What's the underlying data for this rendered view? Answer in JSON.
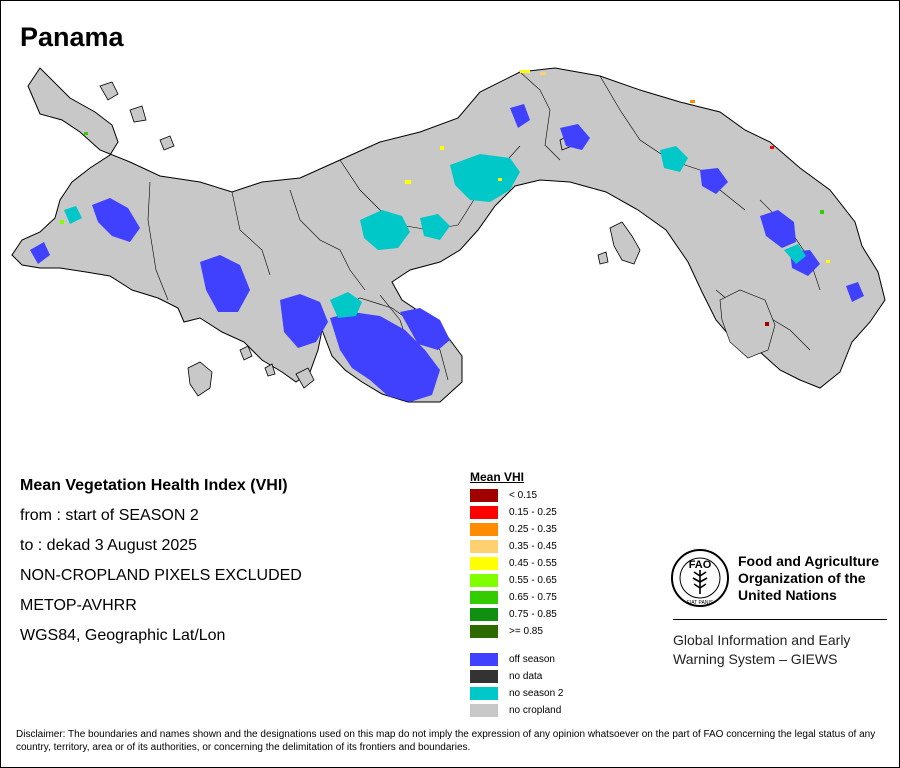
{
  "title": "Panama",
  "info": {
    "heading": "Mean Vegetation Health Index (VHI)",
    "from": "from     : start of SEASON 2",
    "to": "to        : dekad 3 August 2025",
    "exclusion": "NON-CROPLAND PIXELS EXCLUDED",
    "sensor": "METOP-AVHRR",
    "projection": "WGS84, Geographic Lat/Lon"
  },
  "legend": {
    "title": "Mean VHI",
    "classes": [
      {
        "label": "< 0.15",
        "color": "#a00000"
      },
      {
        "label": "0.15 - 0.25",
        "color": "#ff0000"
      },
      {
        "label": "0.25 - 0.35",
        "color": "#ff8c00"
      },
      {
        "label": "0.35 - 0.45",
        "color": "#ffd070"
      },
      {
        "label": "0.45 - 0.55",
        "color": "#ffff00"
      },
      {
        "label": "0.55 - 0.65",
        "color": "#80ff00"
      },
      {
        "label": "0.65 - 0.75",
        "color": "#33cc00"
      },
      {
        "label": "0.75 - 0.85",
        "color": "#109010"
      },
      {
        "label": ">= 0.85",
        "color": "#2d6b00"
      }
    ],
    "special": [
      {
        "label": "off season",
        "color": "#4040ff"
      },
      {
        "label": "no data",
        "color": "#333333"
      },
      {
        "label": "no season 2",
        "color": "#00c8c8"
      },
      {
        "label": "no cropland",
        "color": "#c8c8c8"
      }
    ]
  },
  "fao": {
    "logo_icon": "fao-logo-icon",
    "logo_text": "FAO",
    "logo_motto": "FIAT PANIS",
    "org_line1": "Food and Agriculture",
    "org_line2": "Organization of the",
    "org_line3": "United Nations",
    "giews_line1": "Global Information and Early",
    "giews_line2": "Warning System – GIEWS"
  },
  "disclaimer": "Disclaimer: The boundaries and names shown and the designations used on this map do not imply the expression of any opinion whatsoever on the part of FAO concerning the legal status of any country, territory, area or of its authorities, or concerning the delimitation of its frontiers and boundaries.",
  "colors": {
    "land": "#c8c8c8",
    "off_season": "#4040ff",
    "no_season_2": "#00c8c8",
    "border": "#000000"
  }
}
